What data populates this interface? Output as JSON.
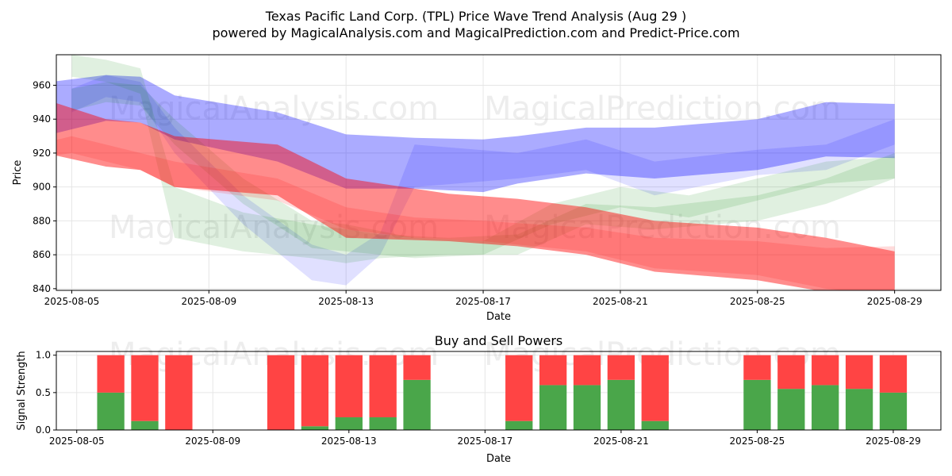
{
  "chart_data": [
    {
      "type": "area",
      "title": "Texas Pacific Land Corp. (TPL) Price Wave Trend Analysis (Aug 29 )",
      "subtitle": "powered by MagicalAnalysis.com and MagicalPrediction.com and Predict-Price.com",
      "xlabel": "Date",
      "ylabel": "Price",
      "ylim": [
        839,
        978
      ],
      "xlim": [
        "2025-08-04",
        "2025-08-30"
      ],
      "x_ticks": [
        "2025-08-05",
        "2025-08-09",
        "2025-08-13",
        "2025-08-17",
        "2025-08-21",
        "2025-08-25",
        "2025-08-29"
      ],
      "y_ticks": [
        840,
        860,
        880,
        900,
        920,
        940,
        960
      ],
      "grid": true,
      "series": [
        {
          "color": "#0000ff",
          "opacity": 0.33,
          "x": [
            "2025-08-04",
            "2025-08-06",
            "2025-08-07",
            "2025-08-08",
            "2025-08-11",
            "2025-08-13",
            "2025-08-15",
            "2025-08-17",
            "2025-08-18",
            "2025-08-20",
            "2025-08-22",
            "2025-08-25",
            "2025-08-27",
            "2025-08-29"
          ],
          "upper": [
            961,
            966,
            965,
            954,
            944,
            931,
            929,
            928,
            930,
            935,
            935,
            940,
            950,
            949
          ],
          "lower": [
            929,
            939,
            938,
            928,
            915,
            899,
            899,
            897,
            902,
            908,
            905,
            910,
            918,
            917
          ]
        },
        {
          "color": "#0000ff",
          "opacity": 0.12,
          "x": [
            "2025-08-05",
            "2025-08-06",
            "2025-08-07",
            "2025-08-08",
            "2025-08-10",
            "2025-08-12",
            "2025-08-13",
            "2025-08-14",
            "2025-08-15",
            "2025-08-18",
            "2025-08-20",
            "2025-08-22",
            "2025-08-25",
            "2025-08-27",
            "2025-08-29"
          ],
          "upper": [
            958,
            966,
            962,
            935,
            895,
            866,
            860,
            873,
            925,
            920,
            928,
            915,
            922,
            925,
            940
          ],
          "lower": [
            944,
            953,
            950,
            920,
            878,
            845,
            842,
            860,
            900,
            905,
            910,
            895,
            907,
            910,
            925
          ]
        },
        {
          "color": "#008000",
          "opacity": 0.12,
          "x": [
            "2025-08-05",
            "2025-08-06",
            "2025-08-07",
            "2025-08-08",
            "2025-08-10",
            "2025-08-12",
            "2025-08-13",
            "2025-08-14",
            "2025-08-16",
            "2025-08-18",
            "2025-08-20",
            "2025-08-22",
            "2025-08-25",
            "2025-08-27",
            "2025-08-29"
          ],
          "upper": [
            978,
            975,
            970,
            900,
            885,
            878,
            875,
            872,
            870,
            872,
            890,
            888,
            895,
            905,
            920
          ],
          "lower": [
            965,
            962,
            955,
            870,
            862,
            858,
            855,
            858,
            860,
            860,
            878,
            875,
            880,
            890,
            905
          ]
        },
        {
          "color": "#008000",
          "opacity": 0.12,
          "x": [
            "2025-08-05",
            "2025-08-06",
            "2025-08-07",
            "2025-08-08",
            "2025-08-10",
            "2025-08-12",
            "2025-08-13",
            "2025-08-15",
            "2025-08-17",
            "2025-08-19",
            "2025-08-21",
            "2025-08-23",
            "2025-08-25",
            "2025-08-27",
            "2025-08-29"
          ],
          "upper": [
            958,
            962,
            960,
            940,
            905,
            880,
            878,
            870,
            868,
            890,
            900,
            895,
            905,
            915,
            918
          ],
          "lower": [
            945,
            950,
            948,
            925,
            890,
            864,
            862,
            858,
            860,
            878,
            888,
            882,
            892,
            902,
            905
          ]
        },
        {
          "color": "#ff0000",
          "opacity": 0.14,
          "x": [
            "2025-08-04",
            "2025-08-05",
            "2025-08-07",
            "2025-08-08",
            "2025-08-11",
            "2025-08-13",
            "2025-08-15",
            "2025-08-17",
            "2025-08-20",
            "2025-08-22",
            "2025-08-25",
            "2025-08-27",
            "2025-08-29"
          ],
          "upper": [
            925,
            930,
            920,
            915,
            905,
            888,
            882,
            880,
            876,
            870,
            868,
            864,
            865
          ],
          "lower": [
            917,
            920,
            910,
            900,
            892,
            875,
            870,
            868,
            862,
            852,
            848,
            840,
            836
          ]
        },
        {
          "color": "#ff0000",
          "opacity": 0.45,
          "x": [
            "2025-08-04",
            "2025-08-06",
            "2025-08-07",
            "2025-08-08",
            "2025-08-11",
            "2025-08-13",
            "2025-08-16",
            "2025-08-18",
            "2025-08-20",
            "2025-08-22",
            "2025-08-25",
            "2025-08-27",
            "2025-08-29"
          ],
          "upper": [
            953,
            940,
            938,
            930,
            925,
            905,
            896,
            893,
            888,
            880,
            876,
            870,
            862
          ],
          "lower": [
            921,
            912,
            910,
            900,
            895,
            870,
            868,
            865,
            860,
            850,
            845,
            838,
            830
          ]
        }
      ]
    },
    {
      "type": "bar",
      "title": "Buy and Sell Powers",
      "xlabel": "Date",
      "ylabel": "Signal Strength",
      "ylim": [
        0,
        1.05
      ],
      "xlim": [
        "2025-08-04.4",
        "2025-08-30.4"
      ],
      "x_ticks": [
        "2025-08-05",
        "2025-08-09",
        "2025-08-13",
        "2025-08-17",
        "2025-08-21",
        "2025-08-25",
        "2025-08-29"
      ],
      "y_ticks": [
        0.0,
        0.5,
        1.0
      ],
      "grid": true,
      "colors": {
        "buy": "#4aa64a",
        "sell": "#ff4444"
      },
      "categories": [
        "2025-08-06",
        "2025-08-07",
        "2025-08-08",
        "2025-08-11",
        "2025-08-12",
        "2025-08-13",
        "2025-08-14",
        "2025-08-15",
        "2025-08-18",
        "2025-08-19",
        "2025-08-20",
        "2025-08-21",
        "2025-08-22",
        "2025-08-25",
        "2025-08-26",
        "2025-08-27",
        "2025-08-28",
        "2025-08-29"
      ],
      "series": [
        {
          "name": "buy",
          "values": [
            0.5,
            0.12,
            0.0,
            0.0,
            0.05,
            0.17,
            0.17,
            0.67,
            0.12,
            0.6,
            0.6,
            0.67,
            0.12,
            0.67,
            0.55,
            0.6,
            0.55,
            0.5
          ]
        },
        {
          "name": "sell",
          "values": [
            0.5,
            0.88,
            1.0,
            1.0,
            0.95,
            0.83,
            0.83,
            0.33,
            0.88,
            0.4,
            0.4,
            0.33,
            0.88,
            0.33,
            0.45,
            0.4,
            0.45,
            0.5
          ]
        }
      ]
    }
  ],
  "watermarks": [
    "MagicalAnalysis.com",
    "MagicalPrediction.com"
  ]
}
